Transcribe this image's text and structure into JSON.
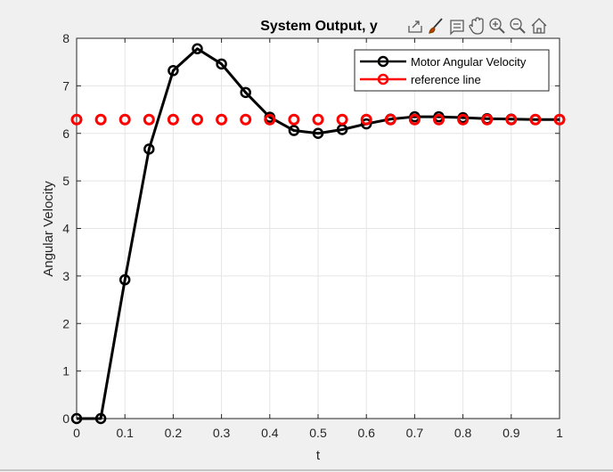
{
  "figure": {
    "background": "#f0f0f0",
    "axes_background": "#ffffff"
  },
  "toolbar": {
    "icons": [
      "export-icon",
      "brush-icon",
      "data-tips-icon",
      "pan-icon",
      "zoom-in-icon",
      "zoom-out-icon",
      "home-icon"
    ]
  },
  "chart_data": {
    "type": "line",
    "title": "System Output, y",
    "xlabel": "t",
    "ylabel": "Angular Velocity",
    "xlim": [
      0,
      1
    ],
    "ylim": [
      0,
      8
    ],
    "xticks": [
      0,
      0.1,
      0.2,
      0.3,
      0.4,
      0.5,
      0.6,
      0.7,
      0.8,
      0.9,
      1
    ],
    "xtick_labels": [
      "0",
      "0.1",
      "0.2",
      "0.3",
      "0.4",
      "0.5",
      "0.6",
      "0.7",
      "0.8",
      "0.9",
      "1"
    ],
    "yticks": [
      0,
      1,
      2,
      3,
      4,
      5,
      6,
      7,
      8
    ],
    "ytick_labels": [
      "0",
      "1",
      "2",
      "3",
      "4",
      "5",
      "6",
      "7",
      "8"
    ],
    "grid": true,
    "legend_position": "top-right",
    "series": [
      {
        "name": "Motor Angular Velocity",
        "color": "#000000",
        "line": true,
        "marker": "circle",
        "x": [
          0,
          0.05,
          0.1,
          0.15,
          0.2,
          0.25,
          0.3,
          0.35,
          0.4,
          0.45,
          0.5,
          0.55,
          0.6,
          0.65,
          0.7,
          0.75,
          0.8,
          0.85,
          0.9,
          0.95,
          1.0
        ],
        "y": [
          0,
          0,
          2.92,
          5.67,
          7.32,
          7.78,
          7.46,
          6.86,
          6.34,
          6.06,
          6.0,
          6.08,
          6.2,
          6.3,
          6.35,
          6.35,
          6.33,
          6.31,
          6.3,
          6.29,
          6.29
        ]
      },
      {
        "name": "reference line",
        "color": "#ff0000",
        "line": false,
        "marker": "circle",
        "x": [
          0,
          0.05,
          0.1,
          0.15,
          0.2,
          0.25,
          0.3,
          0.35,
          0.4,
          0.45,
          0.5,
          0.55,
          0.6,
          0.65,
          0.7,
          0.75,
          0.8,
          0.85,
          0.9,
          0.95,
          1.0
        ],
        "y": [
          6.29,
          6.29,
          6.29,
          6.29,
          6.29,
          6.29,
          6.29,
          6.29,
          6.29,
          6.29,
          6.29,
          6.29,
          6.29,
          6.29,
          6.29,
          6.29,
          6.29,
          6.29,
          6.29,
          6.29,
          6.29
        ]
      }
    ]
  }
}
